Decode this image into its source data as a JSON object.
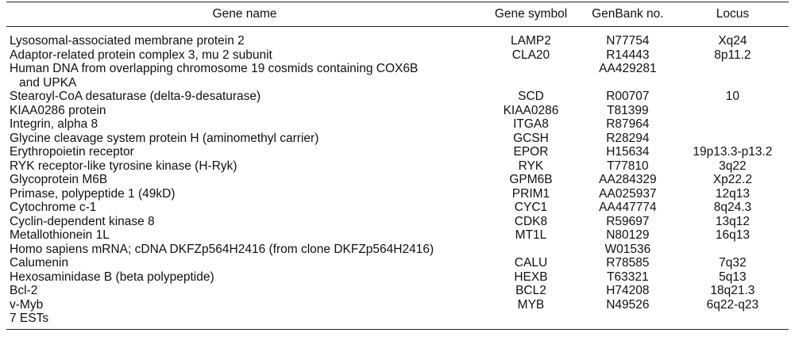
{
  "headers": {
    "gene_name": "Gene name",
    "gene_symbol": "Gene symbol",
    "genbank": "GenBank no.",
    "locus": "Locus"
  },
  "rows": [
    {
      "name": "Lysosomal-associated membrane protein 2",
      "name_cont": "",
      "symbol": "LAMP2",
      "genbank": "N77754",
      "locus": "Xq24"
    },
    {
      "name": "Adaptor-related protein complex 3, mu 2 subunit",
      "name_cont": "",
      "symbol": "CLA20",
      "genbank": "R14443",
      "locus": "8p11.2"
    },
    {
      "name": "Human DNA from overlapping chromosome 19 cosmids containing COX6B",
      "name_cont": "and UPKA",
      "symbol": "",
      "genbank": "AA429281",
      "locus": ""
    },
    {
      "name": "Stearoyl-CoA desaturase (delta-9-desaturase)",
      "name_cont": "",
      "symbol": "SCD",
      "genbank": "R00707",
      "locus": "10"
    },
    {
      "name": "KIAA0286 protein",
      "name_cont": "",
      "symbol": "KIAA0286",
      "genbank": "T81399",
      "locus": ""
    },
    {
      "name": "Integrin, alpha 8",
      "name_cont": "",
      "symbol": "ITGA8",
      "genbank": "R87964",
      "locus": ""
    },
    {
      "name": "Glycine cleavage system protein H (aminomethyl carrier)",
      "name_cont": "",
      "symbol": "GCSH",
      "genbank": "R28294",
      "locus": ""
    },
    {
      "name": "Erythropoietin receptor",
      "name_cont": "",
      "symbol": "EPOR",
      "genbank": "H15634",
      "locus": "19p13.3-p13.2"
    },
    {
      "name": "RYK receptor-like tyrosine kinase (H-Ryk)",
      "name_cont": "",
      "symbol": "RYK",
      "genbank": "T77810",
      "locus": "3q22"
    },
    {
      "name": "Glycoprotein M6B",
      "name_cont": "",
      "symbol": "GPM6B",
      "genbank": "AA284329",
      "locus": "Xp22.2"
    },
    {
      "name": "Primase, polypeptide 1 (49kD)",
      "name_cont": "",
      "symbol": "PRIM1",
      "genbank": "AA025937",
      "locus": "12q13"
    },
    {
      "name": "Cytochrome c-1",
      "name_cont": "",
      "symbol": "CYC1",
      "genbank": "AA447774",
      "locus": "8q24.3"
    },
    {
      "name": "Cyclin-dependent kinase 8",
      "name_cont": "",
      "symbol": "CDK8",
      "genbank": "R59697",
      "locus": "13q12"
    },
    {
      "name": "Metallothionein 1L",
      "name_cont": "",
      "symbol": "MT1L",
      "genbank": "N80129",
      "locus": "16q13"
    },
    {
      "name": "Homo sapiens mRNA; cDNA DKFZp564H2416 (from clone DKFZp564H2416)",
      "name_cont": "",
      "symbol": "",
      "genbank": "W01536",
      "locus": ""
    },
    {
      "name": "Calumenin",
      "name_cont": "",
      "symbol": "CALU",
      "genbank": "R78585",
      "locus": "7q32"
    },
    {
      "name": "Hexosaminidase B (beta polypeptide)",
      "name_cont": "",
      "symbol": "HEXB",
      "genbank": "T63321",
      "locus": "5q13"
    },
    {
      "name": "Bcl-2",
      "name_cont": "",
      "symbol": "BCL2",
      "genbank": "H74208",
      "locus": "18q21.3"
    },
    {
      "name": "v-Myb",
      "name_cont": "",
      "symbol": "MYB",
      "genbank": "N49526",
      "locus": "6q22-q23"
    },
    {
      "name": "7 ESTs",
      "name_cont": "",
      "symbol": "",
      "genbank": "",
      "locus": ""
    }
  ]
}
